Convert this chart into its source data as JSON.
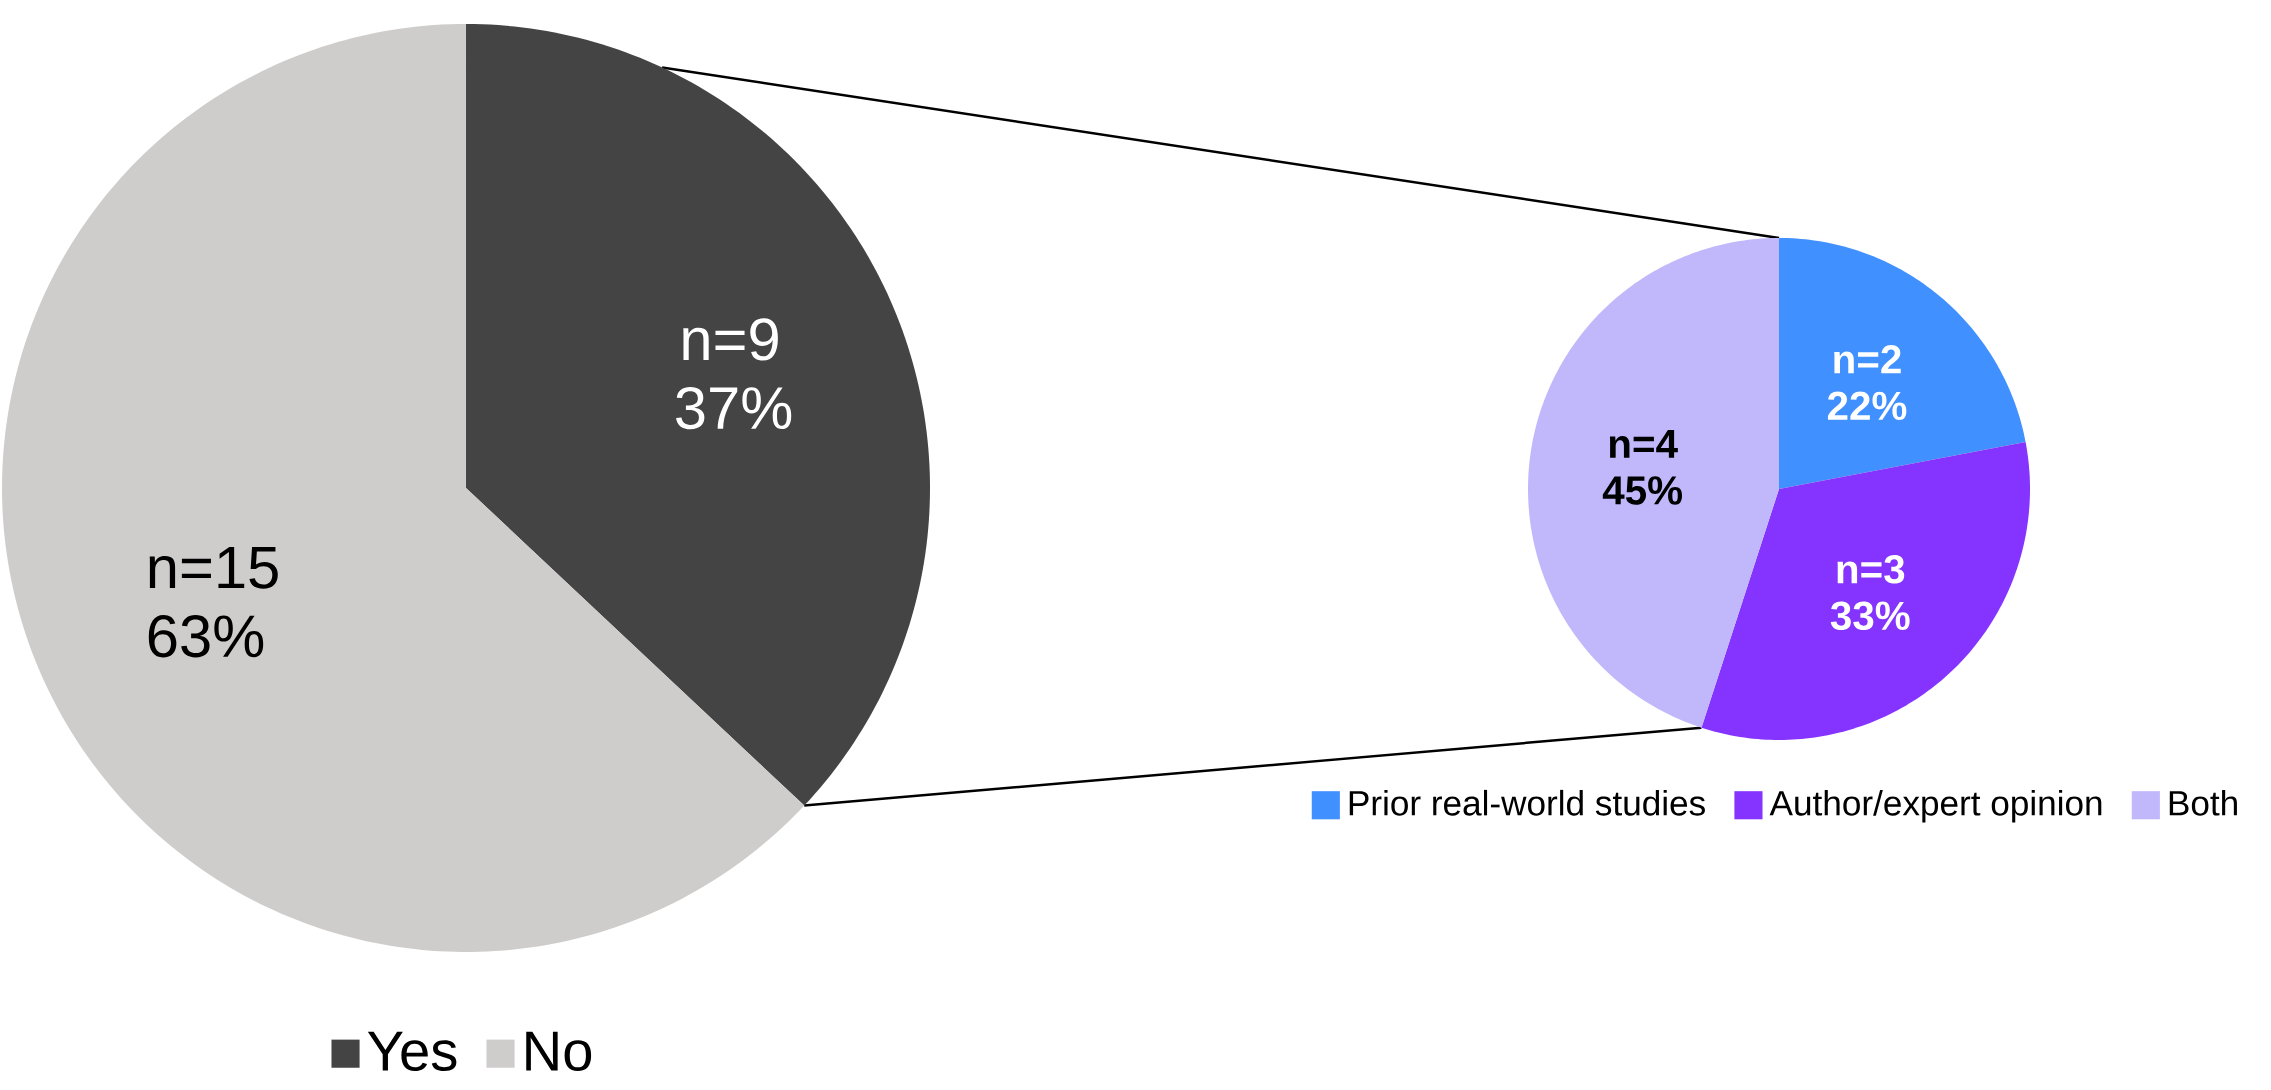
{
  "chart_data": [
    {
      "type": "pie",
      "categories": [
        "Yes",
        "No"
      ],
      "values": [
        37,
        63
      ],
      "colors": [
        "#444444",
        "#cfcdcc"
      ],
      "value_labels": [
        "n=9 37%",
        "n=15 63%"
      ],
      "legend": "bottom"
    },
    {
      "type": "pie",
      "categories": [
        "Prior real-world studies",
        "Author/expert opinion",
        "Both"
      ],
      "values": [
        22,
        33,
        45
      ],
      "colors": [
        "#4190ff",
        "#8533ff",
        "#c0b8fb"
      ],
      "value_labels": [
        "n=2 22%",
        "n=3 33%",
        "n=4 45%"
      ],
      "legend": "bottom"
    }
  ]
}
